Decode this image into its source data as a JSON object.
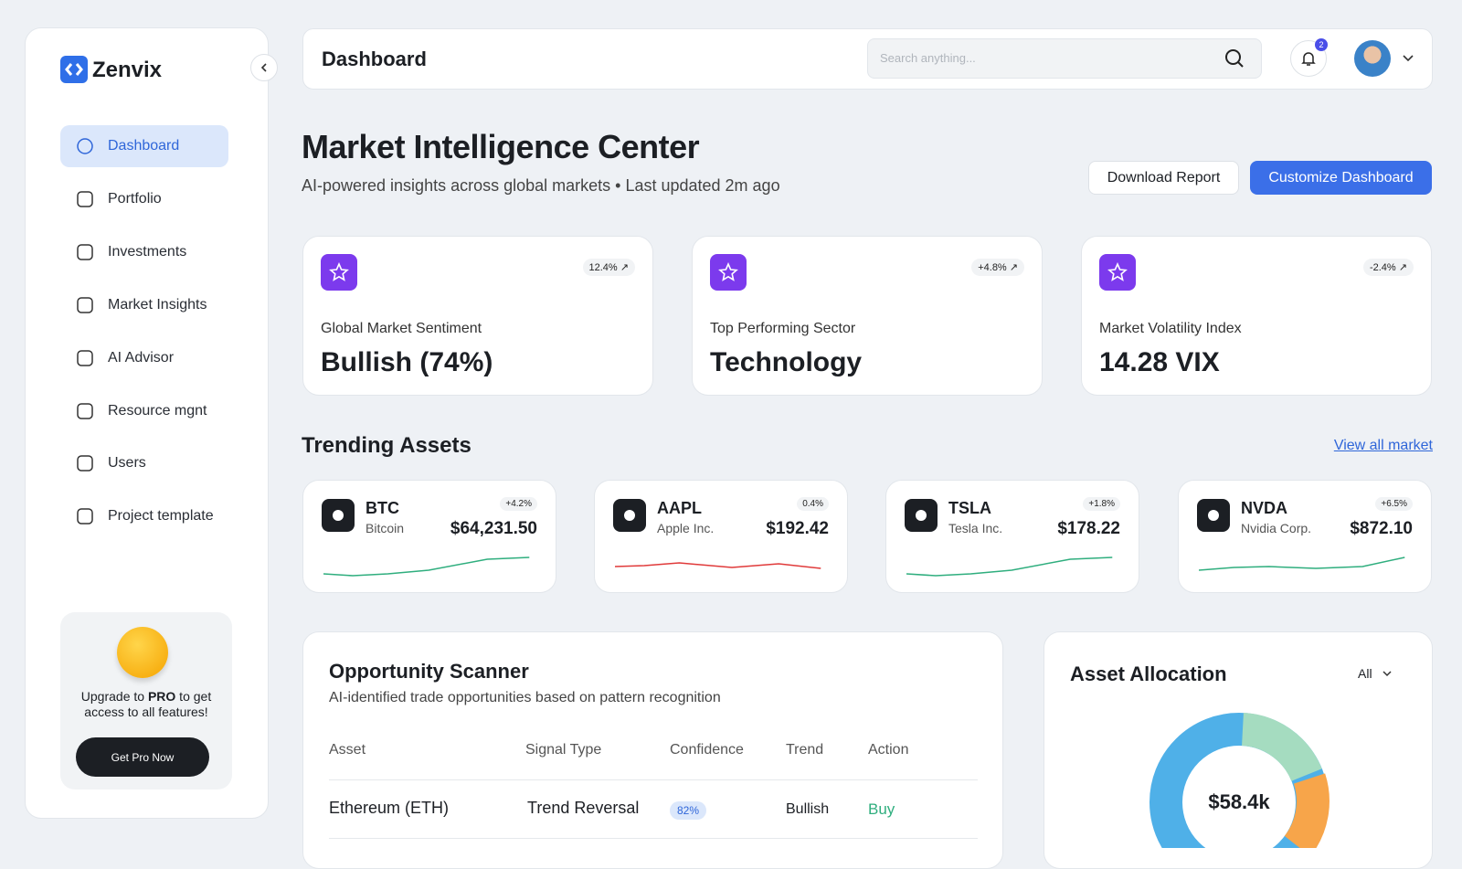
{
  "sidebar": {
    "brand": "Zenvix",
    "nav": [
      "Dashboard",
      "Portfolio",
      "Investments",
      "Market Insights",
      "AI Advisor",
      "Resource mgnt",
      "Users",
      "Project template"
    ],
    "promo": {
      "text_pre": "Upgrade to ",
      "text_bold": "PRO",
      "text_post": " to get access to all features!",
      "button": "Get Pro Now"
    }
  },
  "header": {
    "title": "Dashboard",
    "search_placeholder": "Search anything...",
    "notification_count": "2"
  },
  "hero": {
    "title": "Market Intelligence Center",
    "subtitle": "AI-powered insights across global markets • Last updated 2m ago",
    "buttons": [
      "Download Report",
      "Customize Dashboard"
    ]
  },
  "stats": [
    {
      "change": "12.4%",
      "label": "Global Market Sentiment",
      "value": "Bullish (74%)"
    },
    {
      "change": "+4.8%",
      "label": "Top Performing Sector",
      "value": "Technology"
    },
    {
      "change": "-2.4%",
      "label": "Market Volatility Index",
      "value": "14.28 VIX"
    }
  ],
  "trending": {
    "title": "Trending Assets",
    "link": "View all market",
    "assets": [
      {
        "symbol": "BTC",
        "name": "Bitcoin",
        "change": "+4.2%",
        "price": "$64,231.50"
      },
      {
        "symbol": "AAPL",
        "name": "Apple Inc.",
        "change": "0.4%",
        "price": "$192.42"
      },
      {
        "symbol": "TSLA",
        "name": "Tesla Inc.",
        "change": "+1.8%",
        "price": "$178.22"
      },
      {
        "symbol": "NVDA",
        "name": "Nvidia Corp.",
        "change": "+6.5%",
        "price": "$872.10"
      }
    ]
  },
  "scanner": {
    "title": "Opportunity Scanner",
    "subtitle": "AI-identified trade opportunities based on pattern recognition",
    "columns": [
      "Asset",
      "Signal Type",
      "Confidence",
      "Trend",
      "Action"
    ],
    "rows": [
      [
        "Ethereum (ETH)",
        "Trend Reversal",
        "82%",
        "Bullish",
        "Buy"
      ]
    ]
  },
  "allocation": {
    "title": "Asset Allocation",
    "filter": "All",
    "total": "$58.4k"
  }
}
